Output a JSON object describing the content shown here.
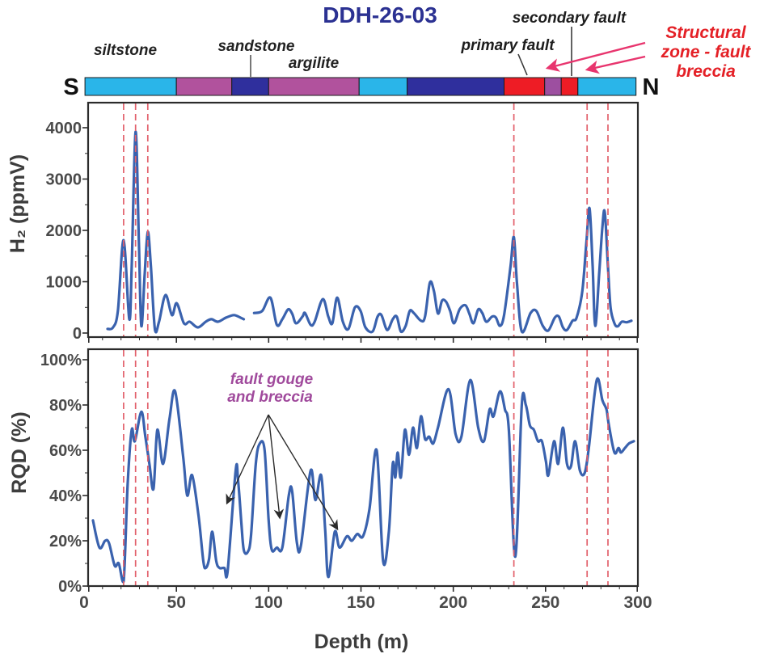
{
  "title": "DDH-26-03",
  "orientation": {
    "south": "S",
    "north": "N"
  },
  "annotations": {
    "siltstone": "siltstone",
    "sandstone": "sandstone",
    "argilite": "argilite",
    "primary_fault": "primary fault",
    "secondary_fault": "secondary fault",
    "structural_zone_lines": [
      "Structural",
      "zone - fault",
      "breccia"
    ],
    "fault_gouge_lines": [
      "fault gouge",
      "and breccia"
    ]
  },
  "colors": {
    "title": "#2b3192",
    "curve": "#3a62ae",
    "fault_dash": "#e2606b",
    "structural_text": "#e42026",
    "structural_arrow": "#e8356e",
    "fault_gouge_text": "#a04a9c",
    "pointer_line": "#555555",
    "black_arrow": "#2b2b2b",
    "axis": "#2b2b2b",
    "tick_text": "#4a4a4a",
    "siltstone": "#2ab5e9",
    "argilite": "#b1529d",
    "sandstone": "#2f2f9d",
    "fault": "#ee1c25",
    "fault_gouge": "#9d4fa0"
  },
  "lithology": {
    "segments": [
      {
        "from": 0.5,
        "to": 50,
        "unit": "siltstone"
      },
      {
        "from": 50,
        "to": 80,
        "unit": "argilite"
      },
      {
        "from": 80,
        "to": 100,
        "unit": "sandstone"
      },
      {
        "from": 100,
        "to": 149,
        "unit": "argilite"
      },
      {
        "from": 149,
        "to": 175,
        "unit": "siltstone"
      },
      {
        "from": 175,
        "to": 227.5,
        "unit": "sandstone"
      },
      {
        "from": 227.5,
        "to": 249.5,
        "unit": "fault"
      },
      {
        "from": 249.5,
        "to": 258.5,
        "unit": "fault_gouge"
      },
      {
        "from": 258.5,
        "to": 267.5,
        "unit": "fault"
      },
      {
        "from": 267.5,
        "to": 299,
        "unit": "siltstone"
      }
    ]
  },
  "fault_lines_m": [
    21.4,
    27.9,
    34.5,
    232.8,
    272.5,
    283.8
  ],
  "xaxis": {
    "label": "Depth (m)",
    "ticks": [
      0,
      50,
      100,
      150,
      200,
      250,
      300
    ],
    "minor_step": 10,
    "range": [
      0,
      300
    ]
  },
  "chart_data": [
    {
      "type": "line",
      "name": "h2",
      "ylabel": "H₂ (ppmV)",
      "xlabel": "Depth (m)",
      "ylim": [
        0,
        4400
      ],
      "xlim": [
        0,
        300
      ],
      "yticks": [
        0,
        1000,
        2000,
        3000,
        4000
      ],
      "ytick_labels": [
        "0",
        "1000",
        "2000",
        "3000",
        "4000"
      ],
      "y_minor_step": 500,
      "grid": false,
      "legend": "none",
      "segments": [
        [
          [
            12.7,
            80
          ],
          [
            15.7,
            110
          ],
          [
            18.3,
            430
          ],
          [
            21.4,
            1810
          ],
          [
            24.5,
            270
          ],
          [
            25.8,
            1290
          ],
          [
            27.9,
            3920
          ],
          [
            29.7,
            1760
          ],
          [
            31,
            140
          ],
          [
            32.8,
            1130
          ],
          [
            34.5,
            1970
          ],
          [
            36.2,
            1290
          ],
          [
            38.4,
            60
          ],
          [
            40.6,
            220
          ],
          [
            44.1,
            740
          ],
          [
            47.6,
            350
          ],
          [
            50.2,
            580
          ],
          [
            54.1,
            190
          ],
          [
            57.2,
            220
          ],
          [
            61.6,
            110
          ],
          [
            65.9,
            220
          ],
          [
            69,
            270
          ],
          [
            72.5,
            220
          ],
          [
            76.9,
            300
          ],
          [
            81.2,
            350
          ],
          [
            84.7,
            300
          ],
          [
            86.5,
            270
          ]
        ],
        [
          [
            92.1,
            390
          ],
          [
            96.5,
            430
          ],
          [
            100.9,
            690
          ],
          [
            104.4,
            160
          ],
          [
            107.4,
            270
          ],
          [
            110.5,
            460
          ],
          [
            112.7,
            380
          ],
          [
            114.8,
            190
          ],
          [
            118.3,
            320
          ],
          [
            119.7,
            390
          ],
          [
            122.7,
            160
          ],
          [
            124.9,
            220
          ],
          [
            129.3,
            660
          ],
          [
            132.3,
            320
          ],
          [
            134.5,
            190
          ],
          [
            137.1,
            690
          ],
          [
            140.2,
            220
          ],
          [
            143.2,
            80
          ],
          [
            146.7,
            500
          ],
          [
            149.8,
            430
          ],
          [
            152.4,
            110
          ],
          [
            156.3,
            30
          ],
          [
            159,
            320
          ],
          [
            161.1,
            350
          ],
          [
            164.2,
            60
          ],
          [
            167.2,
            270
          ],
          [
            169.4,
            320
          ],
          [
            171.6,
            30
          ],
          [
            174.2,
            140
          ],
          [
            176.4,
            430
          ],
          [
            178.6,
            390
          ],
          [
            182.5,
            240
          ],
          [
            184.7,
            320
          ],
          [
            187.3,
            980
          ],
          [
            189.5,
            820
          ],
          [
            191.7,
            380
          ],
          [
            193.9,
            630
          ],
          [
            196.1,
            610
          ],
          [
            198.3,
            430
          ],
          [
            200.4,
            190
          ],
          [
            203.5,
            470
          ],
          [
            206.6,
            540
          ],
          [
            208.7,
            380
          ],
          [
            210.9,
            190
          ],
          [
            213.5,
            460
          ],
          [
            215.7,
            390
          ],
          [
            217.9,
            220
          ],
          [
            221,
            320
          ],
          [
            223.1,
            300
          ],
          [
            225.3,
            140
          ],
          [
            227.5,
            350
          ],
          [
            231,
            1290
          ],
          [
            232.8,
            1870
          ],
          [
            234.5,
            980
          ],
          [
            237.1,
            30
          ],
          [
            241.9,
            390
          ],
          [
            245,
            430
          ],
          [
            248.5,
            140
          ],
          [
            251.5,
            50
          ],
          [
            255,
            300
          ],
          [
            257.2,
            320
          ],
          [
            259.4,
            110
          ],
          [
            261.6,
            60
          ],
          [
            264.6,
            240
          ],
          [
            266.8,
            300
          ],
          [
            269.9,
            820
          ],
          [
            272.1,
            1760
          ],
          [
            273.8,
            2430
          ],
          [
            275.5,
            1290
          ],
          [
            276.9,
            140
          ],
          [
            279,
            1130
          ],
          [
            280.8,
            2080
          ],
          [
            282.1,
            2350
          ],
          [
            283.8,
            1290
          ],
          [
            285.2,
            500
          ],
          [
            287.3,
            190
          ],
          [
            289.1,
            130
          ],
          [
            291.3,
            220
          ],
          [
            293.9,
            210
          ],
          [
            296.5,
            240
          ]
        ]
      ]
    },
    {
      "type": "line",
      "name": "rqd",
      "ylabel": "RQD (%)",
      "xlabel": "Depth (m)",
      "ylim": [
        0,
        104
      ],
      "xlim": [
        0,
        300
      ],
      "yticks": [
        0,
        20,
        40,
        60,
        80,
        100
      ],
      "ytick_labels": [
        "0%",
        "20%",
        "40%",
        "60%",
        "80%",
        "100%"
      ],
      "y_minor_step": 10,
      "grid": false,
      "legend": "none",
      "segments": [
        [
          [
            4.8,
            29
          ],
          [
            8.3,
            17
          ],
          [
            11.4,
            20
          ],
          [
            13.5,
            19
          ],
          [
            16.6,
            9
          ],
          [
            18.8,
            10
          ],
          [
            21.4,
            2
          ],
          [
            23.6,
            45
          ],
          [
            25.8,
            69
          ],
          [
            27.5,
            64
          ],
          [
            31,
            77
          ],
          [
            33.2,
            66
          ],
          [
            35.4,
            54
          ],
          [
            37.6,
            43
          ],
          [
            39.7,
            69
          ],
          [
            42.8,
            54
          ],
          [
            46.3,
            74
          ],
          [
            49.3,
            86
          ],
          [
            53.7,
            57
          ],
          [
            55.9,
            40
          ],
          [
            58.5,
            49
          ],
          [
            62,
            31
          ],
          [
            64.6,
            11
          ],
          [
            65.9,
            8
          ],
          [
            67.7,
            12
          ],
          [
            69.4,
            24
          ],
          [
            71.6,
            11
          ],
          [
            73.4,
            8
          ],
          [
            76,
            8
          ],
          [
            77.7,
            6
          ],
          [
            82.1,
            51
          ],
          [
            83.4,
            47
          ],
          [
            85.2,
            28
          ],
          [
            86.5,
            16
          ],
          [
            88.6,
            15
          ],
          [
            90.4,
            22
          ],
          [
            93,
            54
          ],
          [
            95.2,
            63
          ],
          [
            97.8,
            60
          ],
          [
            100,
            29
          ],
          [
            101.7,
            16
          ],
          [
            104.4,
            17
          ],
          [
            107.4,
            17
          ],
          [
            110.9,
            40
          ],
          [
            112.7,
            42
          ],
          [
            115.3,
            19
          ],
          [
            117.5,
            18
          ],
          [
            122.7,
            51
          ],
          [
            125.3,
            38
          ],
          [
            128.4,
            49
          ],
          [
            130.6,
            25
          ],
          [
            132.3,
            4
          ],
          [
            135.8,
            24
          ],
          [
            138.4,
            17
          ],
          [
            142.4,
            22
          ],
          [
            145,
            20
          ],
          [
            148,
            23
          ],
          [
            151.1,
            22
          ],
          [
            154.6,
            34
          ],
          [
            158.5,
            60
          ],
          [
            162,
            11
          ],
          [
            165.1,
            24
          ],
          [
            167.2,
            54
          ],
          [
            168.6,
            48
          ],
          [
            169.9,
            59
          ],
          [
            171.6,
            48
          ],
          [
            173.8,
            69
          ],
          [
            176,
            58
          ],
          [
            178.2,
            70
          ],
          [
            180.3,
            61
          ],
          [
            182.5,
            75
          ],
          [
            184.7,
            65
          ],
          [
            186.9,
            66
          ],
          [
            189.1,
            63
          ],
          [
            191.7,
            70
          ],
          [
            197.4,
            87
          ],
          [
            201.3,
            67
          ],
          [
            204.4,
            66
          ],
          [
            209.2,
            91
          ],
          [
            213.5,
            70
          ],
          [
            216.6,
            64
          ],
          [
            219.7,
            78
          ],
          [
            221.8,
            75
          ],
          [
            225.3,
            86
          ],
          [
            228,
            78
          ],
          [
            230.1,
            69
          ],
          [
            233.6,
            13
          ],
          [
            237.1,
            80
          ],
          [
            239.3,
            80
          ],
          [
            241.5,
            71
          ],
          [
            243.7,
            69
          ],
          [
            245.9,
            64
          ],
          [
            248,
            64
          ],
          [
            250.2,
            55
          ],
          [
            251.5,
            49
          ],
          [
            254.6,
            64
          ],
          [
            256.8,
            54
          ],
          [
            259.4,
            70
          ],
          [
            261.6,
            54
          ],
          [
            263.8,
            53
          ],
          [
            266,
            64
          ],
          [
            268.6,
            51
          ],
          [
            271.2,
            50
          ],
          [
            273.4,
            61
          ],
          [
            277.7,
            91
          ],
          [
            280.8,
            82
          ],
          [
            283,
            78
          ],
          [
            284.3,
            71
          ],
          [
            287.3,
            59
          ],
          [
            289.5,
            61
          ],
          [
            290.8,
            59
          ],
          [
            293,
            61
          ],
          [
            295.2,
            63
          ],
          [
            297.8,
            64
          ]
        ]
      ]
    }
  ]
}
